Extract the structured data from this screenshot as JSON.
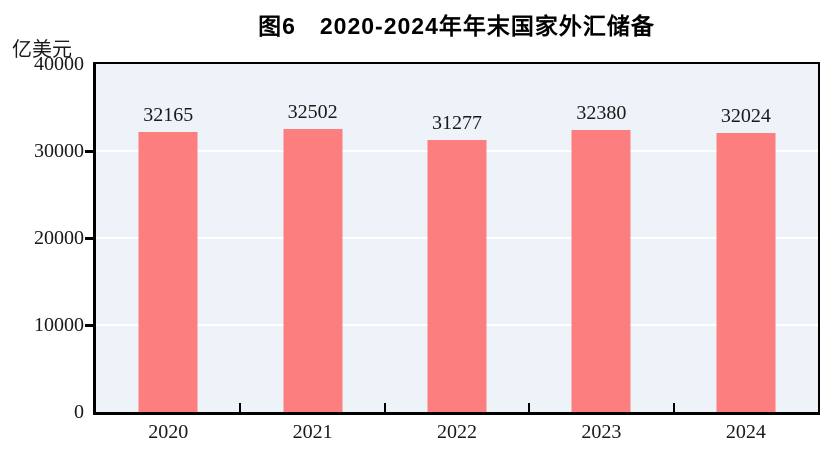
{
  "header": {
    "title": "图6　2020-2024年年末国家外汇储备"
  },
  "chart_data": {
    "type": "bar",
    "title": "图6　2020-2024年年末国家外汇储备",
    "unit_label": "亿美元",
    "categories": [
      "2020",
      "2021",
      "2022",
      "2023",
      "2024"
    ],
    "values": [
      32165,
      32502,
      31277,
      32380,
      32024
    ],
    "data_labels": [
      "32165",
      "32502",
      "31277",
      "32380",
      "32024"
    ],
    "xlabel": "",
    "ylabel": "亿美元",
    "ylim": [
      0,
      40000
    ],
    "yticks": [
      0,
      10000,
      20000,
      30000,
      40000
    ],
    "grid": true,
    "legend": "none",
    "colors": {
      "bar": "#FC7E7E",
      "plot_background": "#EDF3F8",
      "gridline": "#FFFFFF",
      "axis": "#000000",
      "text": "#1A1A1A"
    }
  }
}
